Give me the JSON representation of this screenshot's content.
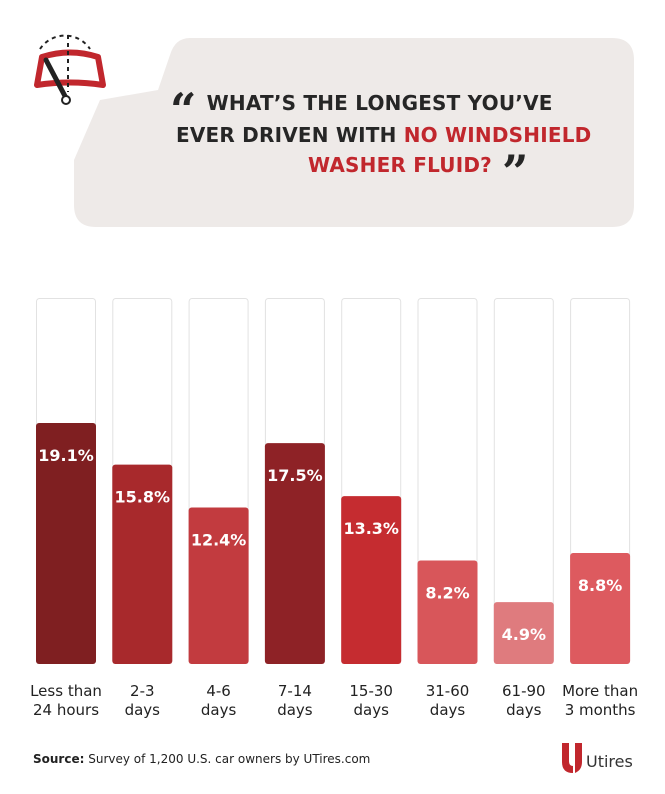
{
  "title": {
    "line1": "WHAT’S THE LONGEST YOU’VE",
    "line2_plain": "EVER DRIVEN WITH ",
    "line2_highlight": "NO WINDSHIELD",
    "line3_highlight": "WASHER FLUID?",
    "quote_open": "“",
    "quote_close": "”"
  },
  "colors": {
    "bubble": "#eeeae8",
    "highlight": "#c1272d",
    "icon_red": "#c1272d",
    "track_border": "#e2e2e2"
  },
  "icons": {
    "header": "windshield-wiper-icon",
    "brand": "utires-logo-icon"
  },
  "chart_data": {
    "type": "bar",
    "categories": [
      "Less than\n24 hours",
      "2-3\ndays",
      "4-6\ndays",
      "7-14\ndays",
      "15-30\ndays",
      "31-60\ndays",
      "61-90\ndays",
      "More than\n3 months"
    ],
    "values": [
      19.1,
      15.8,
      12.4,
      17.5,
      13.3,
      8.2,
      4.9,
      8.8
    ],
    "value_labels": [
      "19.1%",
      "15.8%",
      "12.4%",
      "17.5%",
      "13.3%",
      "8.2%",
      "4.9%",
      "8.8%"
    ],
    "bar_colors": [
      "#7f1f21",
      "#a8292c",
      "#c23b3f",
      "#8e2226",
      "#c52c30",
      "#d8565a",
      "#df7b7e",
      "#dd5a5f"
    ],
    "ylim": [
      0,
      29
    ],
    "title": "",
    "xlabel": "",
    "ylabel": "",
    "grid": false
  },
  "footer": {
    "source_label": "Source:",
    "source_text": " Survey of 1,200 U.S. car owners by UTires.com",
    "brand": "Utires"
  }
}
